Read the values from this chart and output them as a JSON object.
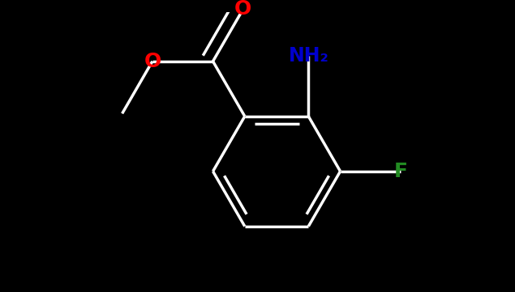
{
  "background_color": "#000000",
  "bond_color": "#ffffff",
  "label_colors": {
    "O": "#ff0000",
    "NH2": "#0000cd",
    "F": "#228b22"
  },
  "line_width": 2.5,
  "font_size": 16,
  "figsize": [
    6.35,
    3.61
  ],
  "dpi": 100
}
